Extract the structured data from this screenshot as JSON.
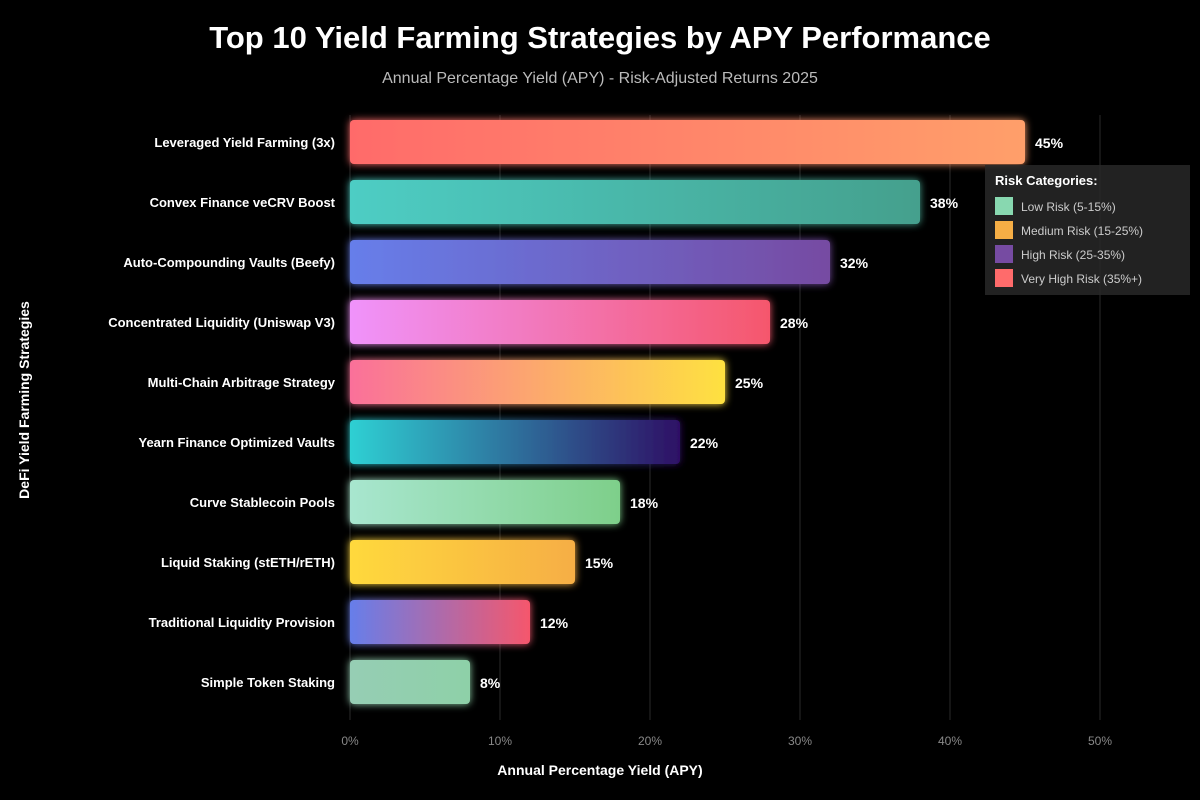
{
  "chart_data": {
    "type": "bar",
    "orientation": "horizontal",
    "title": "Top 10 Yield Farming Strategies by APY Performance",
    "subtitle": "Annual Percentage Yield (APY) - Risk-Adjusted Returns 2025",
    "xlabel": "Annual Percentage Yield (APY)",
    "ylabel": "DeFi Yield Farming Strategies",
    "xlim": [
      0,
      55
    ],
    "xticks": [
      "0%",
      "10%",
      "20%",
      "30%",
      "40%",
      "50%"
    ],
    "grid": true,
    "categories": [
      "Leveraged Yield Farming (3x)",
      "Convex Finance veCRV Boost",
      "Auto-Compounding Vaults (Beefy)",
      "Concentrated Liquidity (Uniswap V3)",
      "Multi-Chain Arbitrage Strategy",
      "Yearn Finance Optimized Vaults",
      "Curve Stablecoin Pools",
      "Liquid Staking (stETH/rETH)",
      "Traditional Liquidity Provision",
      "Simple Token Staking"
    ],
    "values": [
      45,
      38,
      32,
      28,
      25,
      22,
      18,
      15,
      12,
      8
    ],
    "value_labels": [
      "45%",
      "38%",
      "32%",
      "28%",
      "25%",
      "22%",
      "18%",
      "15%",
      "12%",
      "8%"
    ],
    "bar_gradients": [
      [
        "#ff6b6b",
        "#ff9f6b"
      ],
      [
        "#4ecdc4",
        "#44a08d"
      ],
      [
        "#667eea",
        "#764ba2"
      ],
      [
        "#f093fb",
        "#f5576c"
      ],
      [
        "#fa709a",
        "#fee140"
      ],
      [
        "#2fd0d3",
        "#2e1065"
      ],
      [
        "#a8e6cf",
        "#7ecf8a"
      ],
      [
        "#ffd93d",
        "#f6ae45"
      ],
      [
        "#667eea",
        "#f5576c"
      ],
      [
        "#96ceb4",
        "#8ed0a8"
      ]
    ],
    "legend": {
      "title": "Risk Categories:",
      "placement": "top-right",
      "items": [
        {
          "label": "Low Risk (5-15%)",
          "color": "#88d8b0"
        },
        {
          "label": "Medium Risk (15-25%)",
          "color": "#f6ae45"
        },
        {
          "label": "High Risk (25-35%)",
          "color": "#764ba2"
        },
        {
          "label": "Very High Risk (35%+)",
          "color": "#ff6b6b"
        }
      ]
    }
  }
}
